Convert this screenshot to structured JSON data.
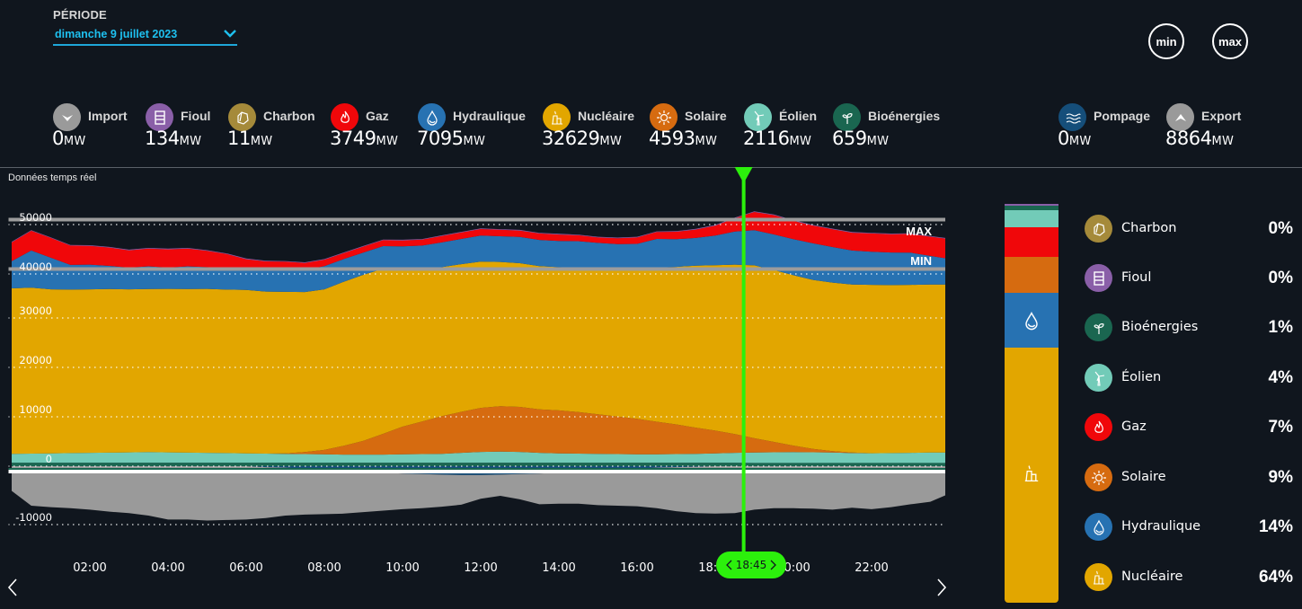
{
  "periode": {
    "label": "PÉRIODE",
    "selected": "dimanche 9 juillet 2023"
  },
  "buttons": {
    "min": "min",
    "max": "max"
  },
  "unit": "MW",
  "sources": [
    {
      "key": "import",
      "name": "Import",
      "value": "0",
      "color": "#9a9a9a",
      "icon": "chevron-down-icon"
    },
    {
      "key": "fioul",
      "name": "Fioul",
      "value": "134",
      "color": "#8a5fa8",
      "icon": "oil-barrel-icon"
    },
    {
      "key": "charbon",
      "name": "Charbon",
      "value": "11",
      "color": "#a58a3a",
      "icon": "coal-icon"
    },
    {
      "key": "gaz",
      "name": "Gaz",
      "value": "3749",
      "color": "#f0070a",
      "icon": "flame-icon"
    },
    {
      "key": "hydraulique",
      "name": "Hydraulique",
      "value": "7095",
      "color": "#2772b2",
      "icon": "water-drop-icon"
    },
    {
      "key": "nucleaire",
      "name": "Nucléaire",
      "value": "32629",
      "color": "#e2a600",
      "icon": "nuclear-plant-icon"
    },
    {
      "key": "solaire",
      "name": "Solaire",
      "value": "4593",
      "color": "#d66b10",
      "icon": "sun-icon"
    },
    {
      "key": "eolien",
      "name": "Éolien",
      "value": "2116",
      "color": "#72cbb8",
      "icon": "wind-turbine-icon"
    },
    {
      "key": "bioenergies",
      "name": "Bioénergies",
      "value": "659",
      "color": "#1a6650",
      "icon": "sprout-icon"
    }
  ],
  "exchanges": [
    {
      "key": "pompage",
      "name": "Pompage",
      "value": "0",
      "color": "#154e7a",
      "icon": "waves-icon"
    },
    {
      "key": "export",
      "name": "Export",
      "value": "8864",
      "color": "#9a9a9a",
      "icon": "chevron-up-icon"
    }
  ],
  "realtime_label": "Données temps réel",
  "cursor_time": "18:45",
  "mix": {
    "items": [
      {
        "key": "charbon",
        "name": "Charbon",
        "pct": "0%",
        "value": 0,
        "color": "#a58a3a",
        "icon": "coal-icon"
      },
      {
        "key": "fioul",
        "name": "Fioul",
        "pct": "0%",
        "value": 0,
        "color": "#8a5fa8",
        "icon": "oil-barrel-icon"
      },
      {
        "key": "bioenergies",
        "name": "Bioénergies",
        "pct": "1%",
        "value": 1,
        "color": "#1a6650",
        "icon": "sprout-icon"
      },
      {
        "key": "eolien",
        "name": "Éolien",
        "pct": "4%",
        "value": 4,
        "color": "#72cbb8",
        "icon": "wind-turbine-icon"
      },
      {
        "key": "gaz",
        "name": "Gaz",
        "pct": "7%",
        "value": 7,
        "color": "#f0070a",
        "icon": "flame-icon"
      },
      {
        "key": "solaire",
        "name": "Solaire",
        "pct": "9%",
        "value": 9,
        "color": "#d66b10",
        "icon": "sun-icon"
      },
      {
        "key": "hydraulique",
        "name": "Hydraulique",
        "pct": "14%",
        "value": 14,
        "color": "#2772b2",
        "icon": "water-drop-icon"
      },
      {
        "key": "nucleaire",
        "name": "Nucléaire",
        "pct": "64%",
        "value": 64,
        "color": "#e2a600",
        "icon": "nuclear-plant-icon"
      }
    ]
  },
  "chart_data": {
    "type": "area",
    "title": "",
    "xlabel": "",
    "ylabel": "MW",
    "xlim_hours": [
      0,
      24
    ],
    "ylim": [
      -12000,
      52000
    ],
    "y_ticks": [
      50000,
      40000,
      30000,
      20000,
      10000,
      0,
      -10000
    ],
    "y_tick_labels": [
      "50000",
      "40000",
      "30000",
      "20000",
      "10000",
      "0",
      "-10000"
    ],
    "x_ticks": [
      "02:00",
      "04:00",
      "06:00",
      "08:00",
      "10:00",
      "12:00",
      "14:00",
      "16:00",
      "18:00",
      "20:00",
      "22:00"
    ],
    "x_tick_hours": [
      2,
      4,
      6,
      8,
      10,
      12,
      14,
      16,
      18,
      20,
      22
    ],
    "grid": "horizontal-dotted",
    "reference_lines": [
      {
        "label": "MAX",
        "value": 50000
      },
      {
        "label": "MIN",
        "value": 40000
      }
    ],
    "cursor_hour": 18.75,
    "x_hours": [
      0,
      0.5,
      1,
      1.5,
      2,
      2.5,
      3,
      3.5,
      4,
      4.5,
      5,
      5.5,
      6,
      6.5,
      7,
      7.5,
      8,
      8.5,
      9,
      9.5,
      10,
      10.5,
      11,
      11.5,
      12,
      12.5,
      13,
      13.5,
      14,
      14.5,
      15,
      15.5,
      16,
      16.5,
      17,
      17.5,
      18,
      18.5,
      19,
      19.5,
      20,
      20.5,
      21,
      21.5,
      22,
      22.5,
      23,
      23.5,
      24
    ],
    "series_positive": [
      {
        "name": "Bioénergies",
        "color": "#1a6650",
        "values": [
          700,
          700,
          700,
          700,
          700,
          700,
          700,
          700,
          700,
          700,
          700,
          700,
          700,
          700,
          700,
          700,
          700,
          700,
          700,
          700,
          700,
          700,
          700,
          700,
          700,
          700,
          700,
          700,
          700,
          700,
          700,
          700,
          700,
          700,
          700,
          700,
          700,
          700,
          660,
          660,
          660,
          660,
          660,
          660,
          660,
          660,
          660,
          660,
          660
        ]
      },
      {
        "name": "Éolien",
        "color": "#72cbb8",
        "values": [
          1800,
          1850,
          1900,
          1950,
          2000,
          2050,
          2100,
          2150,
          2100,
          2050,
          2000,
          1950,
          1900,
          1850,
          1800,
          1750,
          1700,
          1650,
          1650,
          1650,
          1700,
          1750,
          1800,
          2000,
          2200,
          2250,
          2200,
          2000,
          1900,
          1850,
          1800,
          1750,
          1700,
          1700,
          1750,
          1800,
          1900,
          2000,
          2100,
          2150,
          2200,
          2150,
          2100,
          2000,
          1950,
          2000,
          2050,
          2100,
          2100
        ]
      },
      {
        "name": "Solaire",
        "color": "#d66b10",
        "values": [
          0,
          0,
          0,
          0,
          0,
          0,
          0,
          0,
          0,
          0,
          0,
          0,
          0,
          0,
          100,
          400,
          900,
          1800,
          2800,
          4200,
          5600,
          6600,
          7600,
          8300,
          8900,
          9200,
          9100,
          8800,
          8700,
          8400,
          8000,
          7600,
          7200,
          6600,
          6000,
          5300,
          4600,
          3800,
          2900,
          2100,
          1300,
          700,
          300,
          100,
          0,
          0,
          0,
          0,
          0
        ]
      },
      {
        "name": "Nucléaire",
        "color": "#e2a600",
        "values": [
          33500,
          33600,
          33200,
          33100,
          33100,
          33100,
          33000,
          33000,
          33100,
          33100,
          33200,
          33100,
          33100,
          32800,
          32700,
          32400,
          32500,
          33200,
          33600,
          33400,
          31800,
          30700,
          30200,
          29900,
          29600,
          29200,
          29100,
          29000,
          29000,
          29200,
          29500,
          29900,
          30300,
          31200,
          31900,
          32800,
          33500,
          34300,
          35000,
          34800,
          34500,
          34200,
          34100,
          34000,
          34100,
          34000,
          34000,
          34000,
          34000
        ]
      },
      {
        "name": "Hydraulique",
        "color": "#2772b2",
        "values": [
          5500,
          7500,
          6400,
          5000,
          5000,
          4700,
          4400,
          4600,
          4300,
          4600,
          4400,
          4300,
          4200,
          4300,
          4400,
          4500,
          4700,
          4600,
          4500,
          4600,
          4700,
          4900,
          5000,
          5100,
          5300,
          5200,
          5300,
          5300,
          5300,
          5400,
          5200,
          5000,
          5100,
          5800,
          5600,
          5600,
          6000,
          6700,
          7100,
          7200,
          7300,
          7400,
          7200,
          6900,
          6700,
          6600,
          6500,
          5800,
          5200
        ]
      },
      {
        "name": "Gaz",
        "color": "#f0070a",
        "values": [
          3800,
          4000,
          4000,
          3900,
          3800,
          3700,
          3500,
          3600,
          3700,
          3600,
          3300,
          2900,
          2000,
          1800,
          1700,
          1400,
          1300,
          1200,
          1200,
          1200,
          1200,
          1200,
          1300,
          1300,
          1300,
          1300,
          1300,
          1300,
          1300,
          1200,
          1100,
          1200,
          1300,
          1400,
          1500,
          1700,
          2000,
          2700,
          3700,
          3900,
          3700,
          3600,
          3600,
          3600,
          3700,
          3700,
          3800,
          3900,
          4000
        ]
      },
      {
        "name": "Fioul",
        "color": "#8a5fa8",
        "values": [
          130,
          130,
          130,
          130,
          130,
          130,
          130,
          130,
          130,
          130,
          130,
          130,
          130,
          130,
          130,
          130,
          130,
          130,
          130,
          130,
          130,
          130,
          130,
          130,
          130,
          130,
          130,
          130,
          130,
          130,
          130,
          130,
          130,
          130,
          130,
          130,
          130,
          130,
          134,
          134,
          134,
          134,
          134,
          134,
          134,
          134,
          134,
          134,
          134
        ]
      }
    ],
    "series_negative": [
      {
        "name": "Pompage",
        "color": "#154e7a",
        "values": [
          0,
          0,
          0,
          0,
          0,
          0,
          0,
          0,
          0,
          0,
          0,
          0,
          0,
          -200,
          -300,
          -500,
          -700,
          -900,
          -1100,
          -1300,
          -1500,
          -1600,
          -1700,
          -1800,
          -1800,
          -1700,
          -1600,
          -1500,
          -1300,
          -1100,
          -900,
          -700,
          -500,
          -300,
          -200,
          -100,
          0,
          0,
          0,
          0,
          0,
          0,
          0,
          0,
          0,
          0,
          0,
          0,
          0
        ]
      },
      {
        "name": "Export",
        "color": "#9a9a9a",
        "values": [
          -5000,
          -8000,
          -8300,
          -8500,
          -8800,
          -9200,
          -9500,
          -10000,
          -10800,
          -10800,
          -11000,
          -10900,
          -10800,
          -10300,
          -9700,
          -9300,
          -9000,
          -8700,
          -8200,
          -7700,
          -7200,
          -6900,
          -6500,
          -6000,
          -4800,
          -4300,
          -5100,
          -6200,
          -6300,
          -6500,
          -7000,
          -7300,
          -7600,
          -8200,
          -8900,
          -9400,
          -9600,
          -9500,
          -8800,
          -8500,
          -8500,
          -8600,
          -8800,
          -8400,
          -8700,
          -8300,
          -7700,
          -7200,
          -5500
        ]
      }
    ]
  }
}
